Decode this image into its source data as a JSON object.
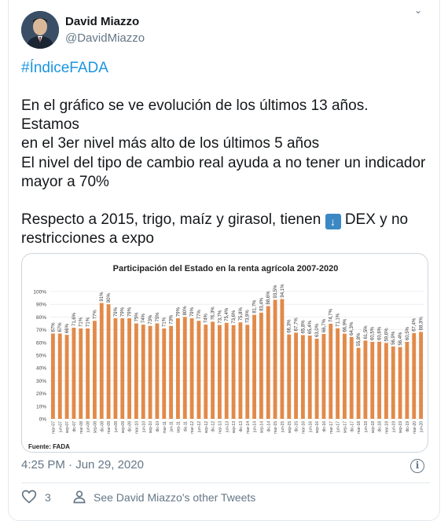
{
  "author": {
    "name": "David Miazzo",
    "handle": "@DavidMiazzo"
  },
  "tweet": {
    "hashtag": "#ÍndiceFADA",
    "para1_line1": "En el gráfico se ve evolución de los últimos 13 años. Estamos",
    "para1_line2": "en el 3er nivel más alto de los últimos 5 años",
    "para2_line1": "El nivel del tipo de cambio real ayuda a no tener un indicador",
    "para2_line2": "mayor a 70%",
    "para3_line1a": "Respecto a 2015, trigo, maíz y girasol, tienen",
    "para3_line1b": "DEX y no",
    "para3_line2": "restricciones a expo"
  },
  "timestamp": "4:25 PM · Jun 29, 2020",
  "footer": {
    "likes": "3",
    "other_tweets": "See David Miazzo's other Tweets"
  },
  "colors": {
    "bar": "#e28a4a",
    "link": "#1b95e0",
    "muted": "#657786"
  },
  "icons": {
    "down_arrow": "down-arrow-emoji",
    "heart": "heart-icon",
    "person": "person-icon",
    "info": "info-icon"
  },
  "chart_data": {
    "type": "bar",
    "title": "Participación del Estado en la renta agrícola 2007-2020",
    "source": "Fuente: FADA",
    "ylim": [
      0,
      100
    ],
    "yticks": [
      "0%",
      "10%",
      "20%",
      "30%",
      "40%",
      "50%",
      "60%",
      "70%",
      "80%",
      "90%",
      "100%"
    ],
    "categories": [
      "mar-07",
      "jun-07",
      "sep-07",
      "dic-07",
      "mar-08",
      "jun-08",
      "sep-08",
      "dic-08",
      "mar-09",
      "jun-09",
      "sep-09",
      "dic-09",
      "mar-10",
      "jun-10",
      "sep-10",
      "dic-10",
      "mar-11",
      "jun-11",
      "sep-11",
      "dic-11",
      "mar-12",
      "jun-12",
      "sep-12",
      "dic-12",
      "mar-13",
      "jun-13",
      "sep-13",
      "dic-13",
      "mar-14",
      "jun-14",
      "sep-14",
      "dic-14",
      "mar-15",
      "jun-15",
      "sep-15",
      "dic-15",
      "mar-16",
      "jun-16",
      "sep-16",
      "dic-16",
      "mar-17",
      "jun-17",
      "sep-17",
      "dic-17",
      "mar-18",
      "jun-18",
      "sep-18",
      "dic-18",
      "mar-19",
      "jun-19",
      "sep-19",
      "dic-19",
      "mar-20",
      "jun-20"
    ],
    "labels": [
      "67%",
      "67%",
      "66%",
      "71,6%",
      "71%",
      "71%",
      "77%",
      "91%",
      "90%",
      "79%",
      "79%",
      "79%",
      "75%",
      "74%",
      "73%",
      "75%",
      "71%",
      "73%",
      "79%",
      "80%",
      "79%",
      "77%",
      "74%",
      "76,3%",
      "73,7%",
      "75,4%",
      "73,6%",
      "75,8%",
      "73,9%",
      "81,7%",
      "83,4%",
      "88,6%",
      "93,5%",
      "94,1%",
      "66,3%",
      "67,7%",
      "65,8%",
      "65,4%",
      "63,0%",
      "66,7%",
      "74,7%",
      "71,1%",
      "66,9%",
      "64,3%",
      "55,8%",
      "61,5%",
      "60,5%",
      "60,6%",
      "59,6%",
      "56,9%",
      "56,4%",
      "60,5%",
      "67,4%",
      "68,3%"
    ],
    "values": [
      67,
      67,
      66,
      71.6,
      71,
      71,
      77,
      91,
      90,
      79,
      79,
      79,
      75,
      74,
      73,
      75,
      71,
      73,
      79,
      80,
      79,
      77,
      74,
      76.3,
      73.7,
      75.4,
      73.6,
      75.8,
      73.9,
      81.7,
      83.4,
      88.6,
      93.5,
      94.1,
      66.3,
      67.7,
      65.8,
      65.4,
      63.0,
      66.7,
      74.7,
      71.1,
      66.9,
      64.3,
      55.8,
      61.5,
      60.5,
      60.6,
      59.6,
      56.9,
      56.4,
      60.5,
      67.4,
      68.3
    ]
  }
}
